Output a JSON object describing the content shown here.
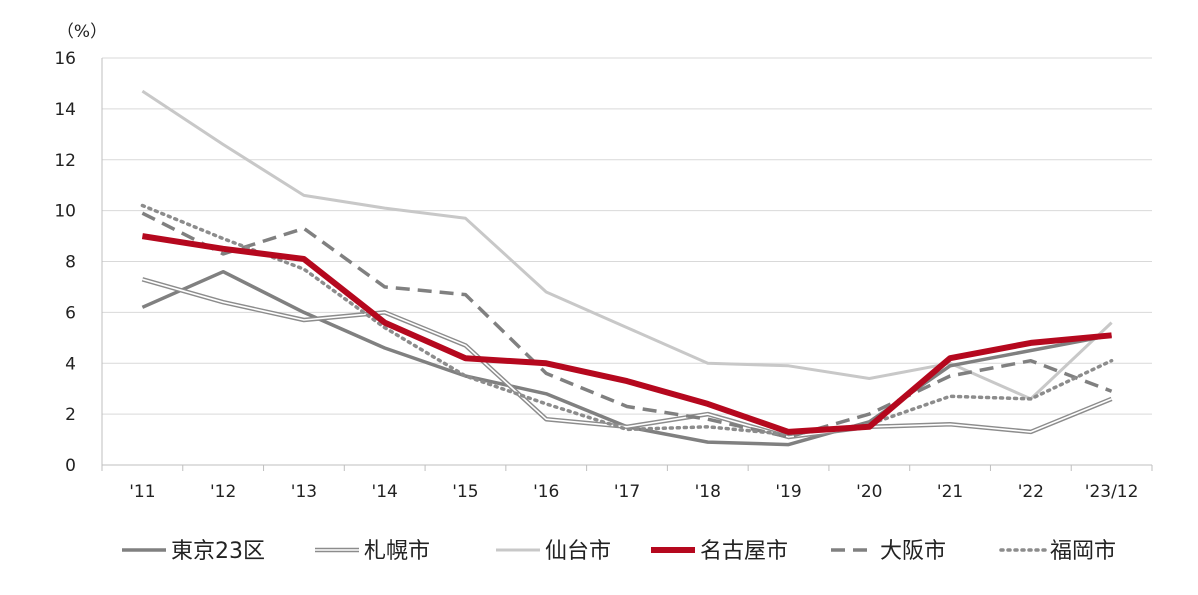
{
  "chart_data": {
    "type": "line",
    "unit_label": "（%）",
    "title": "",
    "xlabel": "",
    "ylabel": "",
    "ylim": [
      0,
      16
    ],
    "yticks": [
      "0",
      "2",
      "4",
      "6",
      "8",
      "10",
      "12",
      "14",
      "16"
    ],
    "categories": [
      "'11",
      "'12",
      "'13",
      "'14",
      "'15",
      "'16",
      "'17",
      "'18",
      "'19",
      "'20",
      "'21",
      "'22",
      "'23/12"
    ],
    "grid": true,
    "legend_position": "bottom",
    "series": [
      {
        "name": "東京23区",
        "style": "solid-thick",
        "color": "#808080",
        "values": [
          6.2,
          7.6,
          6.0,
          4.6,
          3.5,
          2.8,
          1.5,
          0.9,
          0.8,
          1.7,
          3.9,
          4.5,
          5.1
        ]
      },
      {
        "name": "札幌市",
        "style": "double",
        "color": "#8c8c8c",
        "values": [
          7.3,
          6.4,
          5.7,
          6.0,
          4.7,
          1.8,
          1.5,
          2.0,
          1.1,
          1.5,
          1.6,
          1.3,
          2.6
        ]
      },
      {
        "name": "仙台市",
        "style": "solid-light",
        "color": "#c8c8c8",
        "values": [
          14.7,
          12.6,
          10.6,
          10.1,
          9.7,
          6.8,
          5.4,
          4.0,
          3.9,
          3.4,
          4.0,
          2.6,
          5.6
        ]
      },
      {
        "name": "名古屋市",
        "style": "solid-bold",
        "color": "#b5081e",
        "values": [
          9.0,
          8.5,
          8.1,
          5.6,
          4.2,
          4.0,
          3.3,
          2.4,
          1.3,
          1.5,
          4.2,
          4.8,
          5.1
        ]
      },
      {
        "name": "大阪市",
        "style": "dashed",
        "color": "#808080",
        "values": [
          9.9,
          8.3,
          9.3,
          7.0,
          6.7,
          3.6,
          2.3,
          1.8,
          1.1,
          2.0,
          3.5,
          4.1,
          2.9
        ]
      },
      {
        "name": "福岡市",
        "style": "dotted",
        "color": "#8c8c8c",
        "values": [
          10.2,
          8.9,
          7.7,
          5.4,
          3.5,
          2.4,
          1.4,
          1.5,
          1.2,
          1.6,
          2.7,
          2.6,
          4.1
        ]
      }
    ]
  }
}
